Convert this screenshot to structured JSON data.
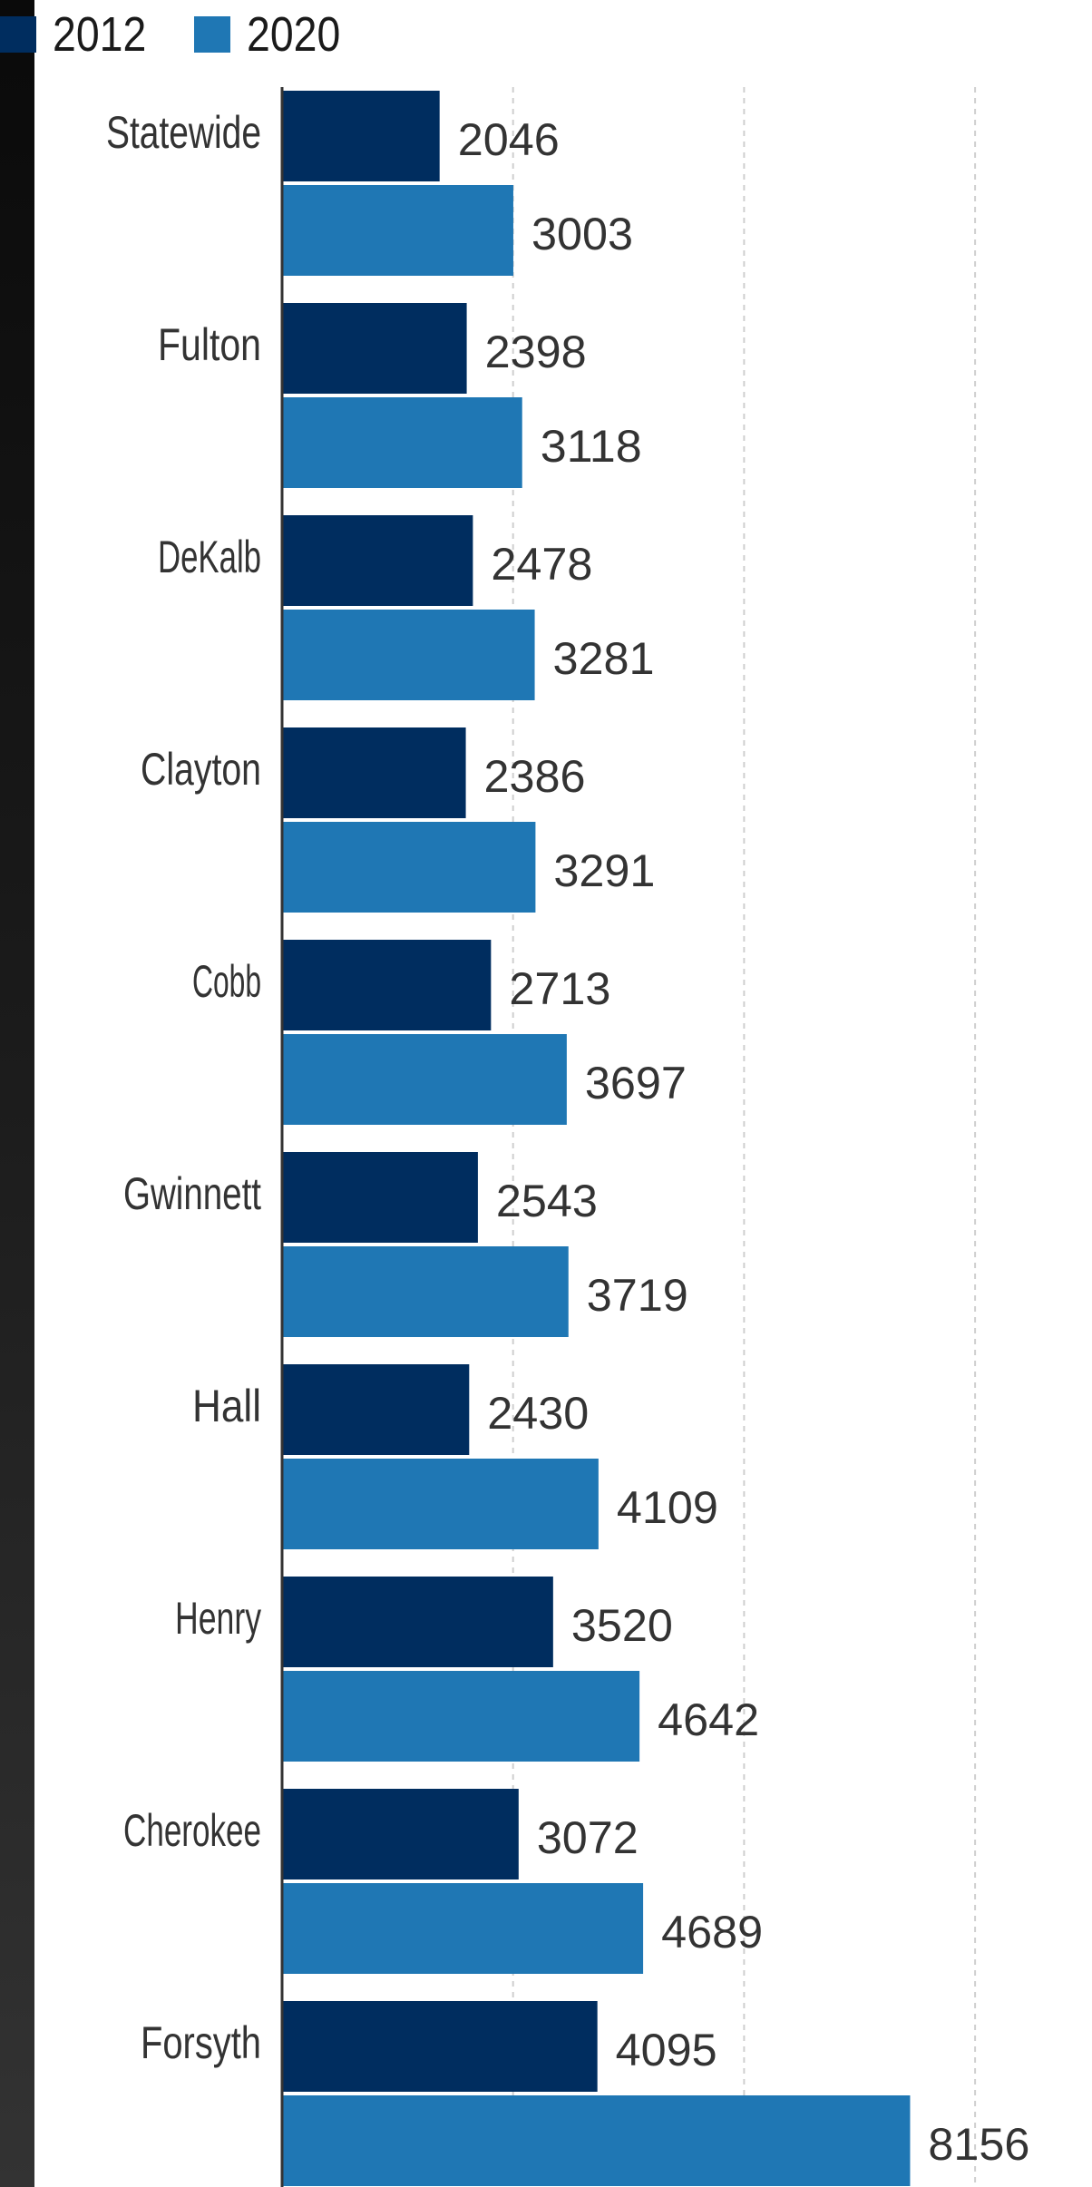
{
  "chart_data": {
    "type": "bar",
    "orientation": "horizontal",
    "title": "",
    "xlabel": "",
    "ylabel": "",
    "categories": [
      "Statewide",
      "Fulton",
      "DeKalb",
      "Clayton",
      "Cobb",
      "Gwinnett",
      "Hall",
      "Henry",
      "Cherokee",
      "Forsyth"
    ],
    "series": [
      {
        "name": "2012",
        "color": "#002d5f",
        "values": [
          2046,
          2398,
          2478,
          2386,
          2713,
          2543,
          2430,
          3520,
          3072,
          4095
        ]
      },
      {
        "name": "2020",
        "color": "#1f77b4",
        "values": [
          3003,
          3118,
          3281,
          3291,
          3697,
          3719,
          4109,
          4642,
          4689,
          8156
        ]
      }
    ],
    "xlim": [
      0,
      9000
    ],
    "gridlines": [
      3000,
      6000,
      9000
    ],
    "grid": true,
    "legend_position": "top-left"
  }
}
